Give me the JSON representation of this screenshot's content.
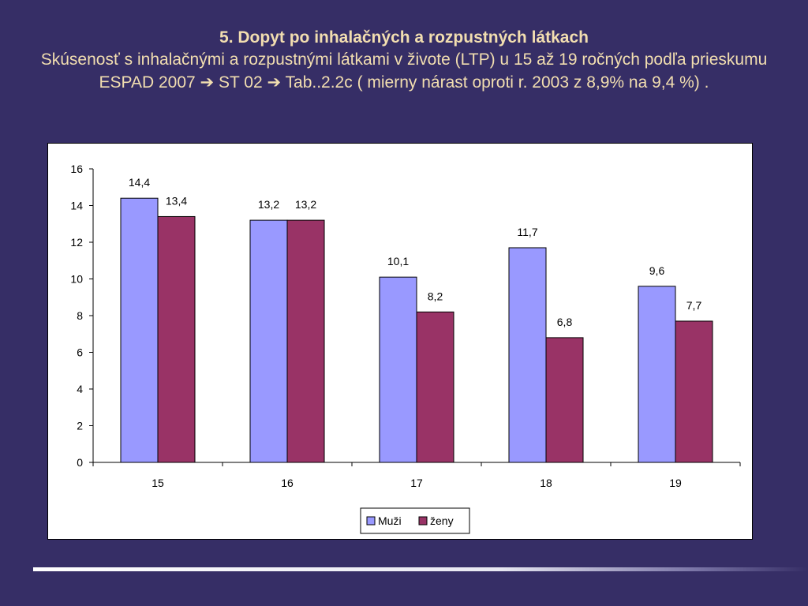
{
  "header": {
    "title": "5. Dopyt po inhalačných a rozpustných látkach",
    "subtitle": "Skúsenosť s inhalačnými a rozpustnými látkami  v živote (LTP)  u 15 až 19 ročných podľa prieskumu ESPAD 2007 ➔ ST 02  ➔ Tab..2.2c  ( mierny nárast oproti r. 2003  z 8,9% na 9,4 %) ."
  },
  "chart_data": {
    "type": "bar",
    "title": "",
    "xlabel": "",
    "ylabel": "",
    "categories": [
      "15",
      "16",
      "17",
      "18",
      "19"
    ],
    "series": [
      {
        "name": "Muži",
        "values": [
          14.4,
          13.2,
          10.1,
          11.7,
          9.6
        ],
        "labels": [
          "14,4",
          "13,2",
          "10,1",
          "11,7",
          "9,6"
        ],
        "color": "#9999ff"
      },
      {
        "name": "ženy",
        "values": [
          13.4,
          13.2,
          8.2,
          6.8,
          7.7
        ],
        "labels": [
          "13,4",
          "13,2",
          "8,2",
          "6,8",
          "7,7"
        ],
        "color": "#993366"
      }
    ],
    "ylim": [
      0,
      16
    ],
    "yticks": [
      0,
      2,
      4,
      6,
      8,
      10,
      12,
      14,
      16
    ],
    "grid": false,
    "legend_position": "bottom-center"
  },
  "colors": {
    "background": "#362e66",
    "title_text": "#f2deb0",
    "chart_background": "#ffffff"
  }
}
